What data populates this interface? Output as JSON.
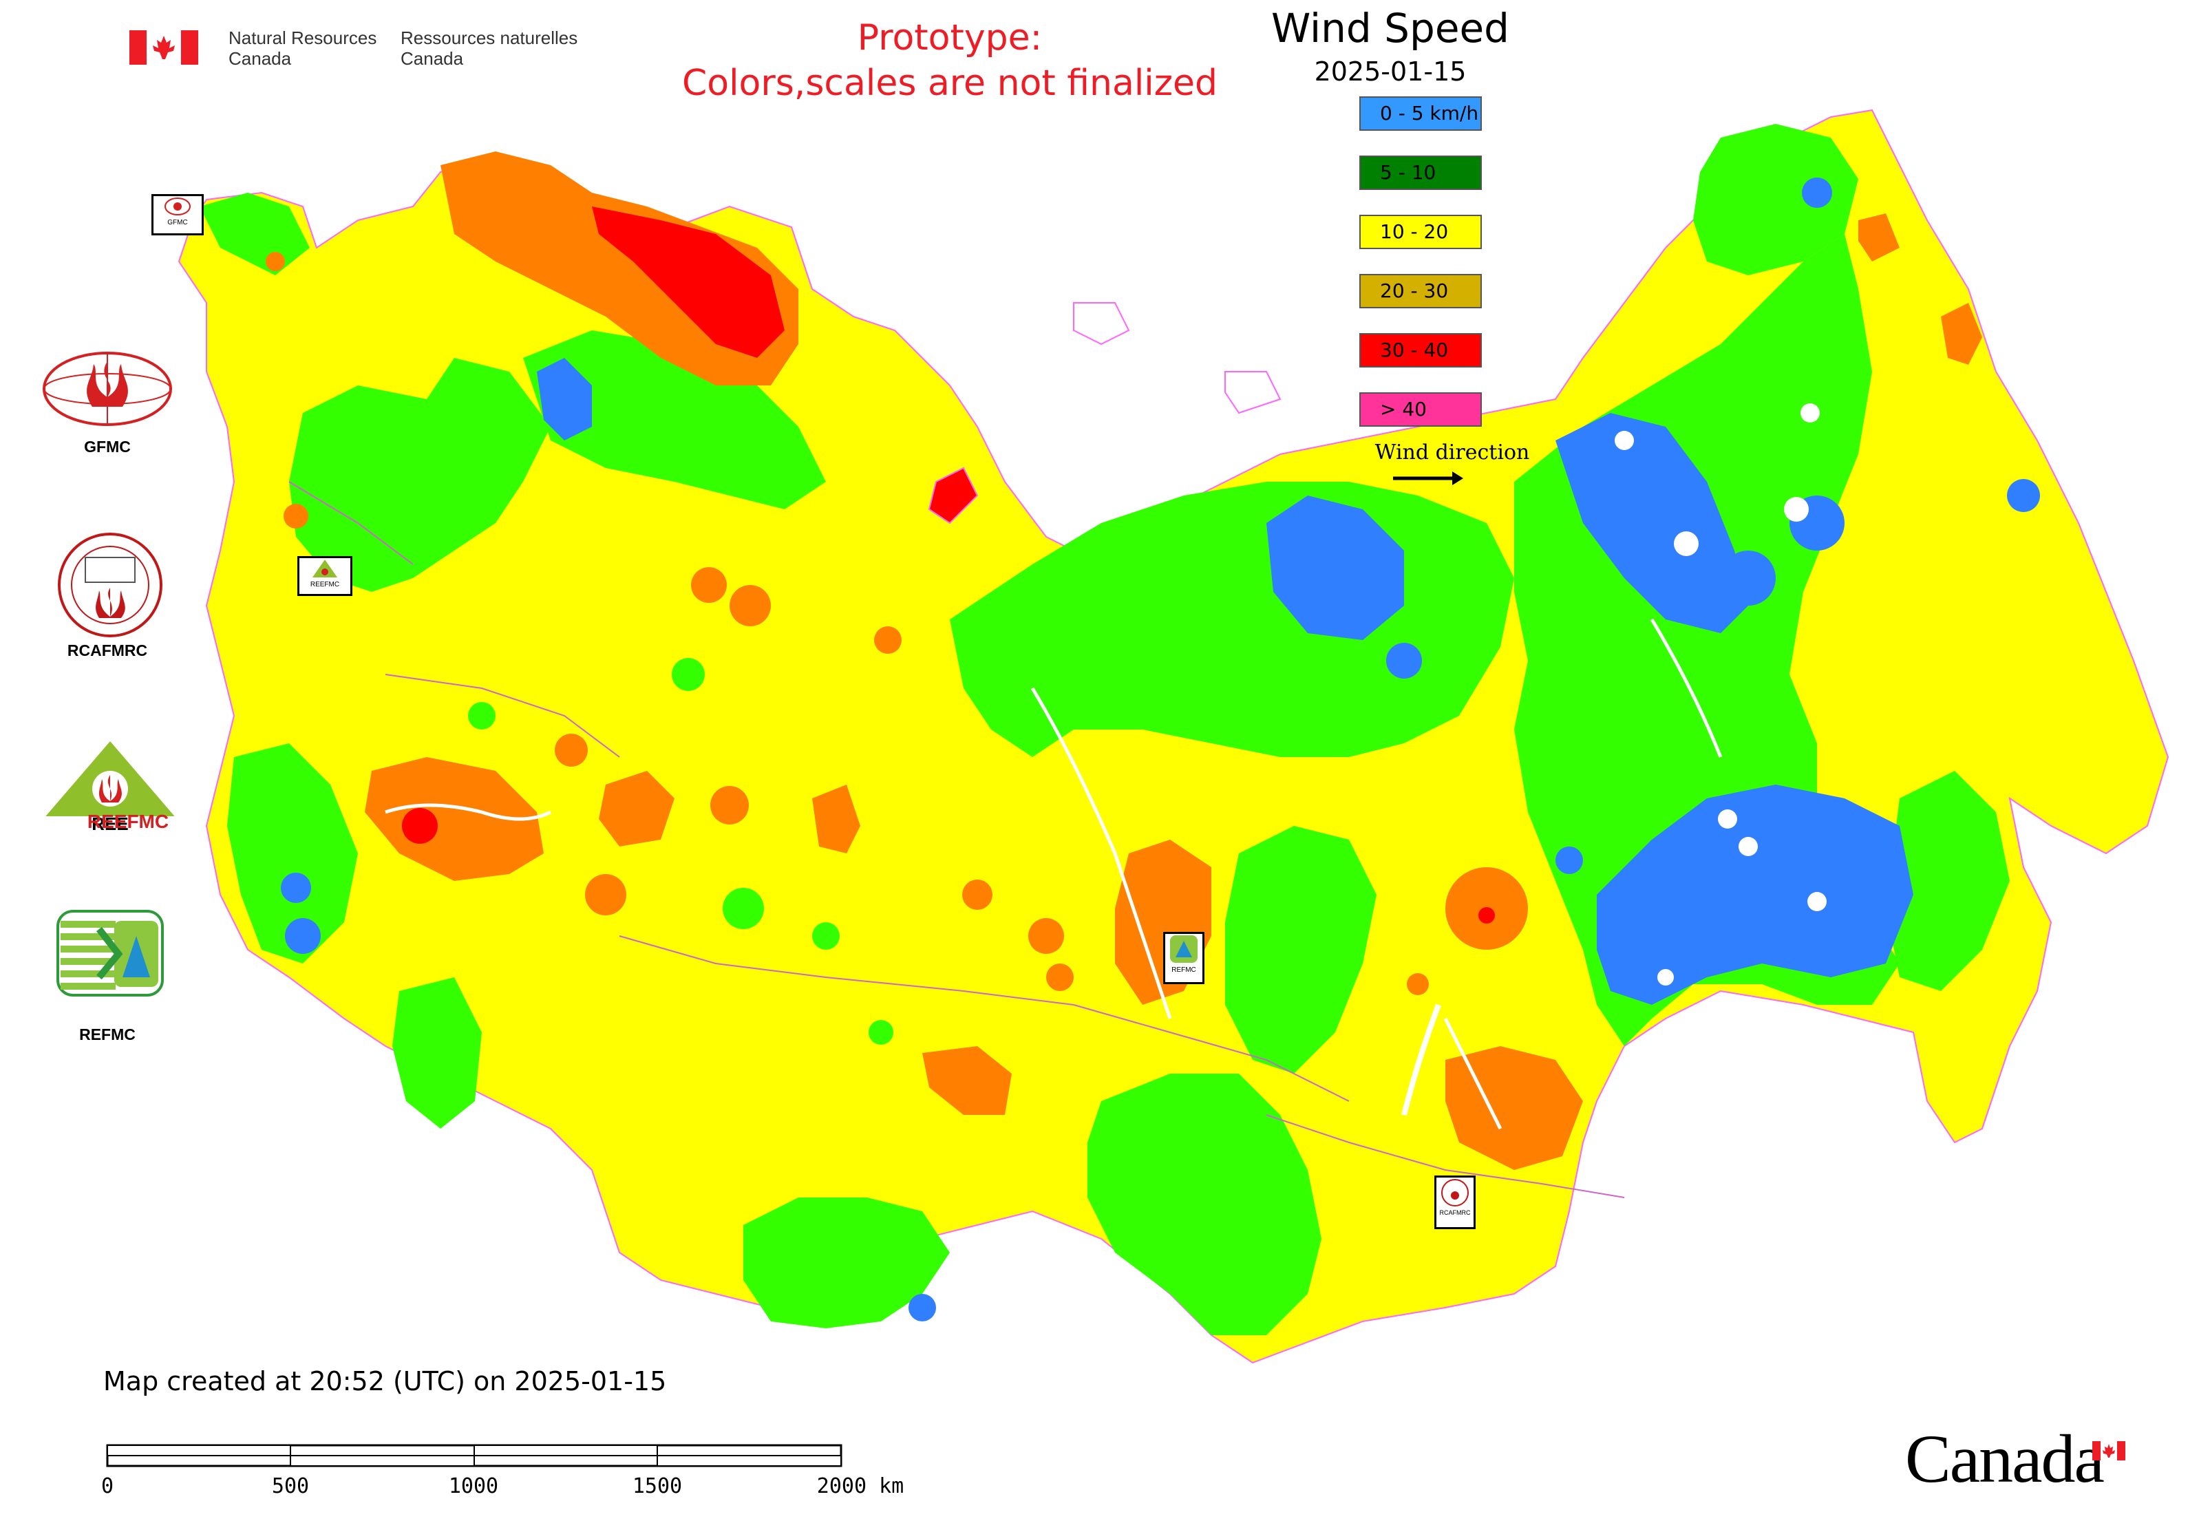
{
  "header": {
    "nrcan_en_line1": "Natural Resources",
    "nrcan_en_line2": "Canada",
    "nrcan_fr_line1": "Ressources naturelles",
    "nrcan_fr_line2": "Canada",
    "prototype_line1": "Prototype:",
    "prototype_line2": "Colors,scales are not finalized"
  },
  "map": {
    "title": "Wind Speed",
    "date": "2025-01-15",
    "legend": [
      {
        "label": "0 - 5 km/h",
        "color": "#3399ff"
      },
      {
        "label": "5 - 10",
        "color": "#008000"
      },
      {
        "label": "10 - 20",
        "color": "#ffff00"
      },
      {
        "label": "20 - 30",
        "color": "#d4b000"
      },
      {
        "label": "30 - 40",
        "color": "#ff0000"
      },
      {
        "label": "> 40",
        "color": "#ff3399"
      }
    ],
    "wind_direction_label": "Wind direction",
    "map_colors": {
      "yellow": "#ffff00",
      "green": "#33ff00",
      "blue": "#2f7fff",
      "orange": "#ff8000",
      "red": "#ff0000",
      "magenta": "#ff33cc"
    },
    "centers": [
      {
        "name": "GFMC"
      },
      {
        "name": "RCAFMRC"
      },
      {
        "name": "REEFMC"
      },
      {
        "name": "REFMC"
      }
    ],
    "markers": [
      {
        "label": "GFMC"
      },
      {
        "label": "REEFMC"
      },
      {
        "label": "REFMC"
      },
      {
        "label": "RCAFMRC"
      }
    ]
  },
  "footer": {
    "created": "Map created at 20:52 (UTC) on 2025-01-15",
    "scale_ticks": [
      "0",
      "500",
      "1000",
      "1500",
      "2000 km"
    ],
    "canada_wordmark": "Canada"
  }
}
